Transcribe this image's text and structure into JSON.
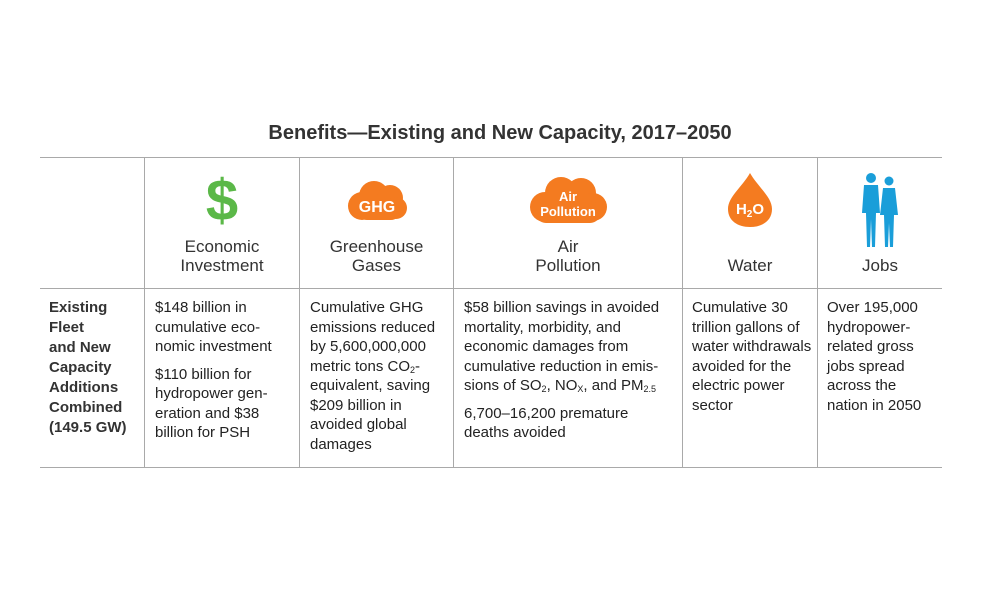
{
  "title": "Benefits—Existing and New Capacity, 2017–2050",
  "colors": {
    "green": "#5bb848",
    "orange": "#f47b20",
    "blue": "#1a9ed9",
    "rule": "#a9a9a9"
  },
  "headers": [
    {
      "icon": "dollar-sign-icon",
      "glyph": "$",
      "lines": [
        "Economic",
        "Investment"
      ]
    },
    {
      "icon": "ghg-cloud-icon",
      "glyph": "GHG",
      "lines": [
        "Greenhouse",
        "Gases"
      ]
    },
    {
      "icon": "air-pollution-cloud-icon",
      "glyph": [
        "Air",
        "Pollution"
      ],
      "lines": [
        "Air",
        "Pollution"
      ]
    },
    {
      "icon": "water-drop-icon",
      "glyph": "H2O",
      "lines": [
        "Water"
      ]
    },
    {
      "icon": "people-icon",
      "lines": [
        "Jobs"
      ]
    }
  ],
  "row_header": [
    "Existing",
    "Fleet",
    "and New",
    "Capacity",
    "Additions",
    "Combined",
    "(149.5 GW)"
  ],
  "cells": {
    "economic": [
      "$148 billion in cumulative eco­nomic investment",
      "$110 billion for hydropower gen­eration and $38 billion for PSH"
    ],
    "ghg": {
      "before": "Cumulative GHG emissions reduced by 5,600,000,000 metric tons CO",
      "sub": "2",
      "after": "-equivalent, saving $209 billion in avoided global damages"
    },
    "air": {
      "p1_before": "$58 billion savings in avoided mortality, morbidity, and economic damages from cumulative reduction in emis­sions of SO",
      "so_sub": "2",
      "p1_mid": ", NO",
      "nox_sub": "X",
      "p1_mid2": ", and PM",
      "pm_sub": "2.5",
      "p2": "6,700–16,200 premature deaths avoided"
    },
    "water": "Cumulative 30 trillion gallons of water with­drawals avoided for the electric power sector",
    "jobs": "Over 195,000 hydropower-related gross jobs spread across the nation in 2050"
  }
}
